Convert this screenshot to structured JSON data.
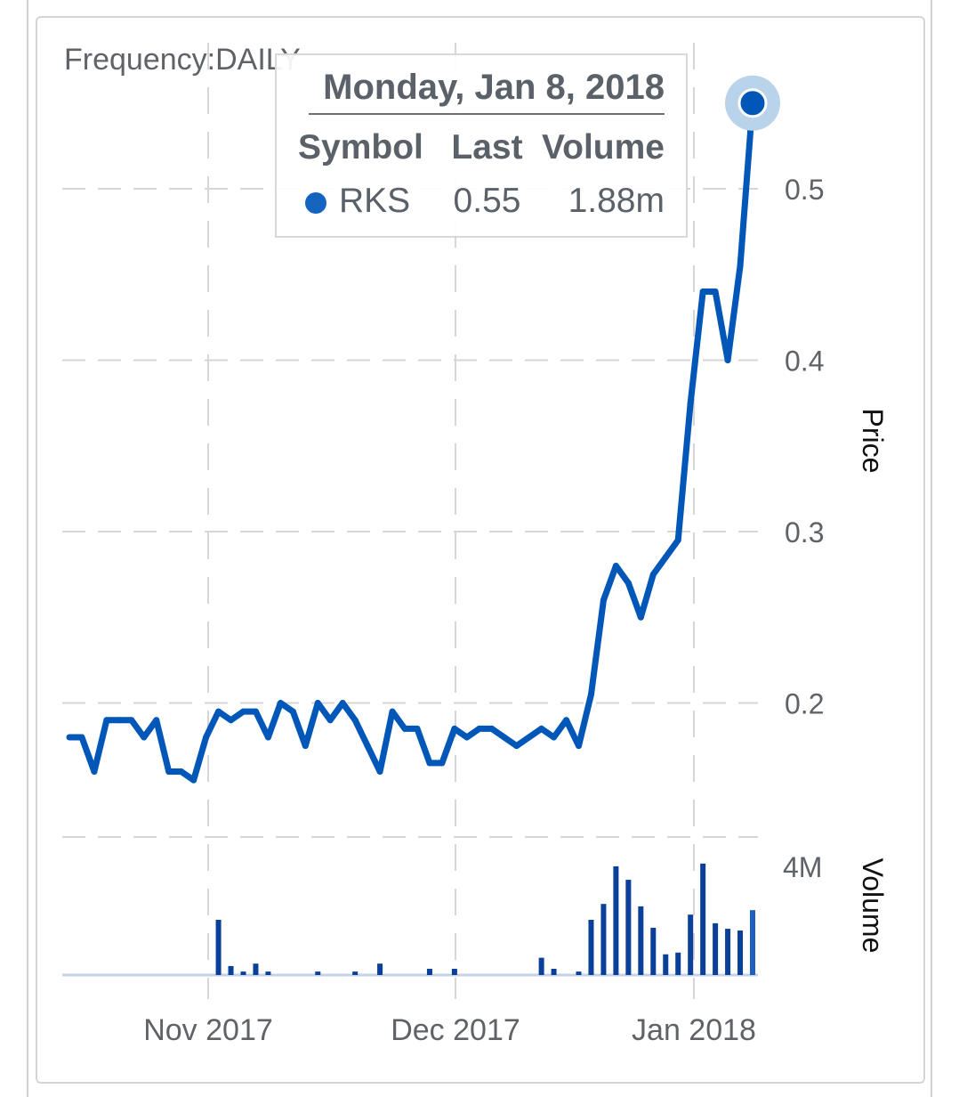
{
  "frequency_label": "Frequency:DAILY",
  "tooltip": {
    "date": "Monday, Jan 8, 2018",
    "headers": [
      "Symbol",
      "Last",
      "Volume"
    ],
    "symbol": "RKS",
    "last": "0.55",
    "volume": "1.88m"
  },
  "colors": {
    "line": "#0057b8",
    "volume": "#0a3f9a",
    "marker_halo": "#b9d3ea",
    "grid": "#d6d6d6"
  },
  "chart_data": {
    "type": "line",
    "price_axis": {
      "label": "Price",
      "ticks": [
        "0.5",
        "0.4",
        "0.3",
        "0.2"
      ],
      "tick_values": [
        0.5,
        0.4,
        0.3,
        0.2
      ]
    },
    "volume_axis": {
      "label": "Volume",
      "ticks": [
        "4M"
      ],
      "tick_values": [
        4000000
      ]
    },
    "x_ticks": [
      "Nov 2017",
      "Dec 2017",
      "Jan 2018"
    ],
    "grid": true,
    "series": [
      {
        "values": [
          0.18,
          0.18,
          0.16,
          0.19,
          0.19,
          0.19,
          0.18,
          0.19,
          0.16,
          0.16,
          0.155,
          0.18,
          0.195,
          0.19,
          0.195,
          0.195,
          0.18,
          0.2,
          0.195,
          0.175,
          0.2,
          0.19,
          0.2,
          0.19,
          0.175,
          0.16,
          0.195,
          0.185,
          0.185,
          0.165,
          0.165,
          0.185,
          0.18,
          0.185,
          0.185,
          0.18,
          0.175,
          0.18,
          0.185,
          0.18,
          0.19,
          0.175,
          0.205,
          0.26,
          0.28,
          0.27,
          0.25,
          0.275,
          0.285,
          0.295,
          0.375,
          0.44,
          0.44,
          0.4,
          0.455,
          0.55
        ]
      },
      {
        "type": "bar",
        "values": [
          0,
          0,
          0,
          0,
          0,
          0,
          0,
          0,
          0,
          0,
          0,
          0,
          1600000,
          260000,
          100000,
          330000,
          100000,
          0,
          0,
          0,
          100000,
          0,
          0,
          100000,
          0,
          330000,
          0,
          0,
          0,
          180000,
          0,
          180000,
          0,
          0,
          0,
          0,
          0,
          0,
          500000,
          180000,
          0,
          100000,
          1600000,
          2060000,
          3150000,
          2760000,
          1990000,
          1370000,
          600000,
          650000,
          1750000,
          3230000,
          1500000,
          1340000,
          1290000,
          1880000
        ]
      }
    ]
  }
}
